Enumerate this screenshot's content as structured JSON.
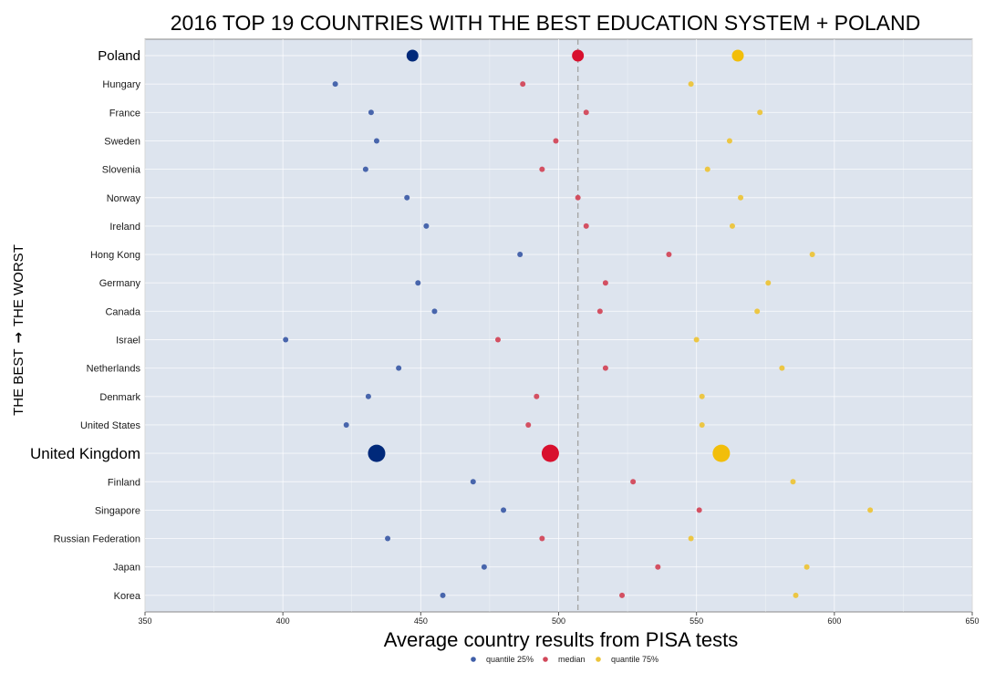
{
  "chart_data": {
    "type": "scatter",
    "title": "2016 TOP 19 COUNTRIES WITH THE BEST EDUCATION SYSTEM + POLAND",
    "xlabel": "Average country results from PISA tests",
    "ylabel_left": "THE BEST",
    "ylabel_right": "THE WORST",
    "ylabel_arrow": "→",
    "xlim": [
      350,
      650
    ],
    "xticks": [
      350,
      400,
      450,
      500,
      550,
      600,
      650
    ],
    "reference_line_x": 507,
    "grid": true,
    "legend_position": "bottom",
    "highlight_large": [
      "United Kingdom"
    ],
    "highlight_medium": [
      "Poland"
    ],
    "categories": [
      "Poland",
      "Hungary",
      "France",
      "Sweden",
      "Slovenia",
      "Norway",
      "Ireland",
      "Hong Kong",
      "Germany",
      "Canada",
      "Israel",
      "Netherlands",
      "Denmark",
      "United States",
      "United Kingdom",
      "Finland",
      "Singapore",
      "Russian Federation",
      "Japan",
      "Korea"
    ],
    "series": [
      {
        "name": "quantile 25%",
        "color": "#3f5ea8",
        "highlight_color": "#00297a",
        "values": [
          447,
          419,
          432,
          434,
          430,
          445,
          452,
          486,
          449,
          455,
          401,
          442,
          431,
          423,
          434,
          469,
          480,
          438,
          473,
          458
        ]
      },
      {
        "name": "median",
        "color": "#d2485a",
        "highlight_color": "#d8102e",
        "values": [
          507,
          487,
          510,
          499,
          494,
          507,
          510,
          540,
          517,
          515,
          478,
          517,
          492,
          489,
          497,
          527,
          551,
          494,
          536,
          523
        ]
      },
      {
        "name": "quantile 75%",
        "color": "#ecc43a",
        "highlight_color": "#f2be0a",
        "values": [
          565,
          548,
          573,
          562,
          554,
          566,
          563,
          592,
          576,
          572,
          550,
          581,
          552,
          552,
          559,
          585,
          613,
          548,
          590,
          586
        ]
      }
    ]
  }
}
